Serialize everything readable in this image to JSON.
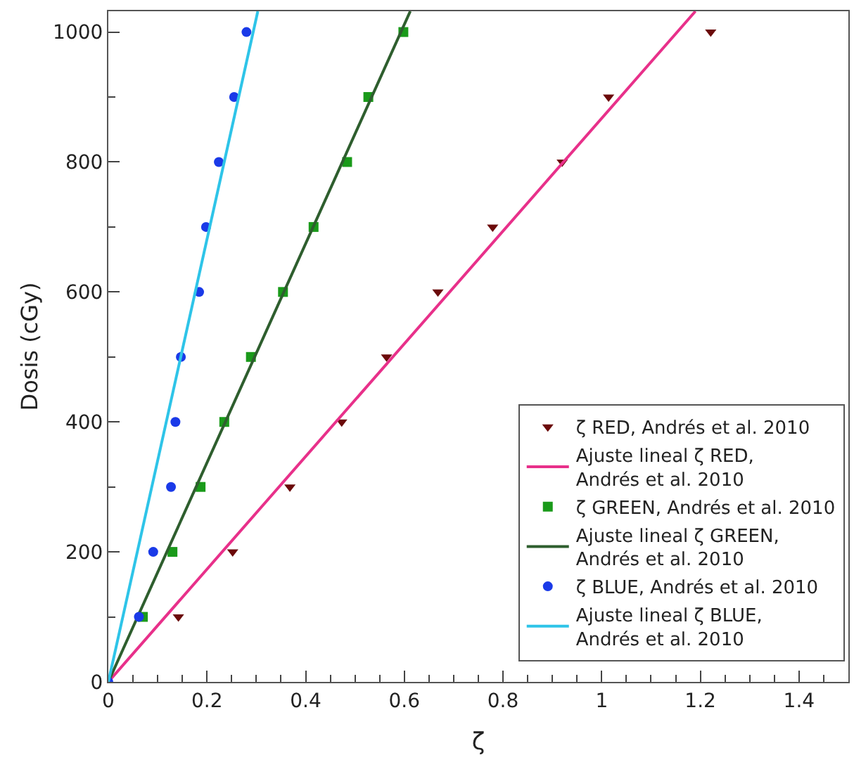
{
  "chart_data": {
    "type": "scatter",
    "xlabel": "ζ",
    "ylabel": "Dosis (cGy)",
    "xlim": [
      0,
      1.5
    ],
    "ylim": [
      0,
      1032
    ],
    "xticks": [
      0,
      0.2,
      0.4,
      0.6,
      0.8,
      1,
      1.2,
      1.4
    ],
    "yticks": [
      0,
      200,
      400,
      600,
      800,
      1000
    ],
    "legend": "bottom right",
    "series": [
      {
        "name": "ζ RED, Andrés et al. 2010",
        "marker": "triangle",
        "color": "#6b0a0a",
        "x": [
          0.142,
          0.252,
          0.368,
          0.473,
          0.564,
          0.668,
          0.779,
          0.92,
          1.014,
          1.221
        ],
        "values": [
          100,
          200,
          300,
          400,
          500,
          600,
          700,
          800,
          900,
          1000
        ]
      },
      {
        "name": "Ajuste lineal ζ RED, Andrés et al. 2010",
        "type": "line",
        "marker": "none",
        "color": "#e8308a",
        "x": [
          0,
          1.19
        ],
        "values": [
          0,
          1032
        ]
      },
      {
        "name": "ζ GREEN, Andrés et al. 2010",
        "marker": "square",
        "color": "#1a9a1a",
        "x": [
          0.07,
          0.13,
          0.187,
          0.235,
          0.289,
          0.354,
          0.416,
          0.484,
          0.527,
          0.598
        ],
        "values": [
          100,
          200,
          300,
          400,
          500,
          600,
          700,
          800,
          900,
          1000
        ]
      },
      {
        "name": "Ajuste lineal ζ GREEN, Andrés et al. 2010",
        "type": "line",
        "marker": "none",
        "color": "#2e5e2e",
        "x": [
          0,
          0.612
        ],
        "values": [
          0,
          1032
        ]
      },
      {
        "name": "ζ BLUE, Andrés et al. 2010",
        "marker": "circle",
        "color": "#1a3ae8",
        "x": [
          0,
          0.062,
          0.091,
          0.127,
          0.136,
          0.147,
          0.184,
          0.198,
          0.224,
          0.255,
          0.28
        ],
        "values": [
          0,
          100,
          200,
          300,
          400,
          500,
          600,
          700,
          800,
          900,
          1000
        ]
      },
      {
        "name": "Ajuste lineal ζ BLUE, Andrés et al. 2010",
        "type": "line",
        "marker": "none",
        "color": "#2ec4e8",
        "x": [
          0,
          0.303
        ],
        "values": [
          0,
          1032
        ]
      }
    ]
  }
}
